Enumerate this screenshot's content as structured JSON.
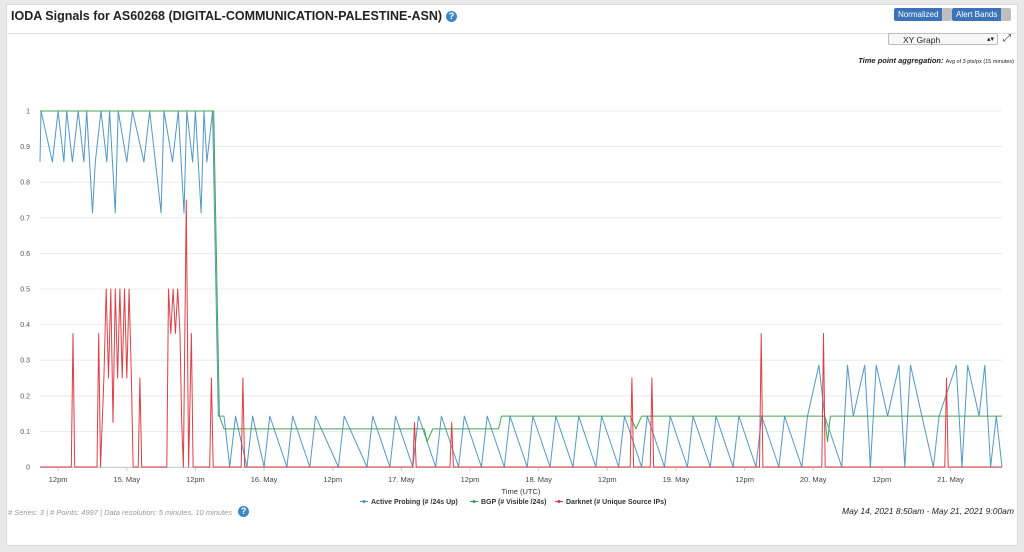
{
  "page": {
    "title": "IODA Signals for AS60268 (DIGITAL-COMMUNICATION-PALESTINE-ASN)",
    "normalized_label": "Normalized",
    "alert_bands_label": "Alert Bands",
    "graph_select_value": "XY Graph",
    "aggregation_label": "Time point aggregation:",
    "aggregation_value": "Avg of 3 pts/px (15 minutes)",
    "footer_series_label": "# Series:",
    "footer_series_value": "3",
    "footer_points_label": "# Points:",
    "footer_points_value": "4997",
    "footer_resolution": "Data resolution: 5 minutes, 10 minutes",
    "time_range": "May 14, 2021 8:50am - May 21, 2021 9:00am",
    "colors": {
      "active": "#4a90c2",
      "bgp": "#3aa14a",
      "darknet": "#d9363e"
    }
  },
  "chart_data": {
    "type": "line",
    "xlabel": "Time (UTC)",
    "ylabel": "",
    "ylim": [
      0,
      1
    ],
    "x_ticks": [
      "12pm",
      "15. May",
      "12pm",
      "16. May",
      "12pm",
      "17. May",
      "12pm",
      "18. May",
      "12pm",
      "19. May",
      "12pm",
      "20. May",
      "12pm",
      "21. May"
    ],
    "y_ticks": [
      "0",
      "0.1",
      "0.2",
      "0.3",
      "0.4",
      "0.5",
      "0.6",
      "0.7",
      "0.8",
      "0.9",
      "1"
    ],
    "x_range_hours": [
      -3.17,
      165.0
    ],
    "series": [
      {
        "name": "Active Probing (# /24s Up)",
        "color": "#4a90c2",
        "points": [
          [
            -3.17,
            0.857
          ],
          [
            -3,
            1
          ],
          [
            -1,
            0.857
          ],
          [
            0,
            1
          ],
          [
            1,
            0.857
          ],
          [
            1.5,
            1
          ],
          [
            2.5,
            0.857
          ],
          [
            3.5,
            1
          ],
          [
            4.5,
            0.857
          ],
          [
            5,
            1
          ],
          [
            6,
            0.714
          ],
          [
            6.5,
            0.857
          ],
          [
            7.5,
            1
          ],
          [
            8.5,
            0.857
          ],
          [
            9,
            1
          ],
          [
            10,
            0.714
          ],
          [
            10.5,
            1
          ],
          [
            12,
            0.857
          ],
          [
            13,
            1
          ],
          [
            15,
            0.857
          ],
          [
            16,
            1
          ],
          [
            18,
            0.714
          ],
          [
            18.5,
            1
          ],
          [
            20,
            0.857
          ],
          [
            21,
            1
          ],
          [
            22,
            0.714
          ],
          [
            22.5,
            1
          ],
          [
            23.5,
            0.857
          ],
          [
            24,
            1
          ],
          [
            25,
            0.714
          ],
          [
            25.5,
            1
          ],
          [
            26,
            0.857
          ],
          [
            27,
            1
          ],
          [
            28,
            0.143
          ],
          [
            29,
            0.143
          ],
          [
            30,
            0
          ],
          [
            31,
            0.143
          ],
          [
            33,
            0
          ],
          [
            34,
            0.143
          ],
          [
            36,
            0
          ],
          [
            37,
            0.143
          ],
          [
            40,
            0
          ],
          [
            41,
            0.143
          ],
          [
            44,
            0
          ],
          [
            45,
            0.143
          ],
          [
            49,
            0
          ],
          [
            50,
            0.143
          ],
          [
            54,
            0
          ],
          [
            55,
            0.143
          ],
          [
            58,
            0
          ],
          [
            59,
            0.143
          ],
          [
            62,
            0
          ],
          [
            63,
            0.143
          ],
          [
            66,
            0
          ],
          [
            67,
            0.143
          ],
          [
            70,
            0
          ],
          [
            71,
            0.143
          ],
          [
            74,
            0
          ],
          [
            75,
            0.143
          ],
          [
            78,
            0
          ],
          [
            79,
            0.143
          ],
          [
            82,
            0
          ],
          [
            83,
            0.143
          ],
          [
            86,
            0
          ],
          [
            87,
            0.143
          ],
          [
            90,
            0
          ],
          [
            91,
            0.143
          ],
          [
            94,
            0
          ],
          [
            95,
            0.143
          ],
          [
            98,
            0
          ],
          [
            99,
            0.143
          ],
          [
            102,
            0
          ],
          [
            103,
            0.143
          ],
          [
            106,
            0
          ],
          [
            107,
            0.143
          ],
          [
            110,
            0
          ],
          [
            111,
            0.143
          ],
          [
            114,
            0
          ],
          [
            115,
            0.143
          ],
          [
            118,
            0
          ],
          [
            119,
            0.143
          ],
          [
            122,
            0
          ],
          [
            123,
            0.143
          ],
          [
            126,
            0
          ],
          [
            127,
            0.143
          ],
          [
            130,
            0
          ],
          [
            131,
            0.143
          ],
          [
            133,
            0.286
          ],
          [
            134,
            0.143
          ],
          [
            137,
            0
          ],
          [
            138,
            0.286
          ],
          [
            139,
            0.143
          ],
          [
            141,
            0.286
          ],
          [
            142,
            0
          ],
          [
            143,
            0.286
          ],
          [
            145,
            0.143
          ],
          [
            147,
            0.286
          ],
          [
            148,
            0
          ],
          [
            149,
            0.286
          ],
          [
            151,
            0.143
          ],
          [
            153,
            0
          ],
          [
            154,
            0.143
          ],
          [
            157,
            0.286
          ],
          [
            158,
            0
          ],
          [
            159,
            0.286
          ],
          [
            161,
            0.143
          ],
          [
            162,
            0.286
          ],
          [
            163,
            0
          ],
          [
            164,
            0.143
          ],
          [
            165,
            0
          ]
        ]
      },
      {
        "name": "BGP (# Visible /24s)",
        "color": "#3aa14a",
        "points": [
          [
            -3.17,
            1
          ],
          [
            27.2,
            1
          ],
          [
            28.2,
            0.143
          ],
          [
            29,
            0.107
          ],
          [
            64,
            0.107
          ],
          [
            64.5,
            0.071
          ],
          [
            65.5,
            0.107
          ],
          [
            77,
            0.107
          ],
          [
            77.5,
            0.143
          ],
          [
            100,
            0.143
          ],
          [
            101,
            0.107
          ],
          [
            102,
            0.143
          ],
          [
            134,
            0.143
          ],
          [
            134.5,
            0.071
          ],
          [
            135,
            0.143
          ],
          [
            165,
            0.143
          ]
        ]
      },
      {
        "name": "Darknet (# Unique Source IPs)",
        "color": "#d9363e",
        "points": [
          [
            -3.17,
            0
          ],
          [
            2.3,
            0
          ],
          [
            2.6,
            0.375
          ],
          [
            2.9,
            0
          ],
          [
            6.8,
            0
          ],
          [
            7.1,
            0.375
          ],
          [
            7.4,
            0
          ],
          [
            8,
            0.25
          ],
          [
            8.4,
            0.5
          ],
          [
            8.8,
            0.25
          ],
          [
            9.2,
            0.5
          ],
          [
            9.6,
            0.125
          ],
          [
            10,
            0.5
          ],
          [
            10.4,
            0.25
          ],
          [
            10.8,
            0.5
          ],
          [
            11.2,
            0.25
          ],
          [
            11.6,
            0.5
          ],
          [
            12,
            0.25
          ],
          [
            12.4,
            0.5
          ],
          [
            12.8,
            0.25
          ],
          [
            13.1,
            0
          ],
          [
            14,
            0
          ],
          [
            14.3,
            0.25
          ],
          [
            14.6,
            0
          ],
          [
            19,
            0
          ],
          [
            19.3,
            0.5
          ],
          [
            19.7,
            0.375
          ],
          [
            20.1,
            0.5
          ],
          [
            20.5,
            0.375
          ],
          [
            20.9,
            0.5
          ],
          [
            21.3,
            0.375
          ],
          [
            21.6,
            0.125
          ],
          [
            21.9,
            0
          ],
          [
            22.4,
            0.75
          ],
          [
            22.8,
            0
          ],
          [
            23.3,
            0.375
          ],
          [
            23.6,
            0
          ],
          [
            26.5,
            0
          ],
          [
            26.8,
            0.25
          ],
          [
            27.1,
            0
          ],
          [
            32,
            0
          ],
          [
            32.3,
            0.25
          ],
          [
            32.6,
            0
          ],
          [
            62,
            0
          ],
          [
            62.3,
            0.125
          ],
          [
            62.6,
            0
          ],
          [
            68.5,
            0
          ],
          [
            68.8,
            0.125
          ],
          [
            69.1,
            0
          ],
          [
            100,
            0
          ],
          [
            100.3,
            0.25
          ],
          [
            100.6,
            0
          ],
          [
            103.5,
            0
          ],
          [
            103.8,
            0.25
          ],
          [
            104.1,
            0
          ],
          [
            122.6,
            0
          ],
          [
            122.9,
            0.375
          ],
          [
            123.2,
            0
          ],
          [
            133.5,
            0
          ],
          [
            133.8,
            0.375
          ],
          [
            134.1,
            0
          ],
          [
            155,
            0
          ],
          [
            155.3,
            0.25
          ],
          [
            155.6,
            0
          ],
          [
            165,
            0
          ]
        ]
      }
    ],
    "legend_position": "bottom-center",
    "grid": true
  }
}
